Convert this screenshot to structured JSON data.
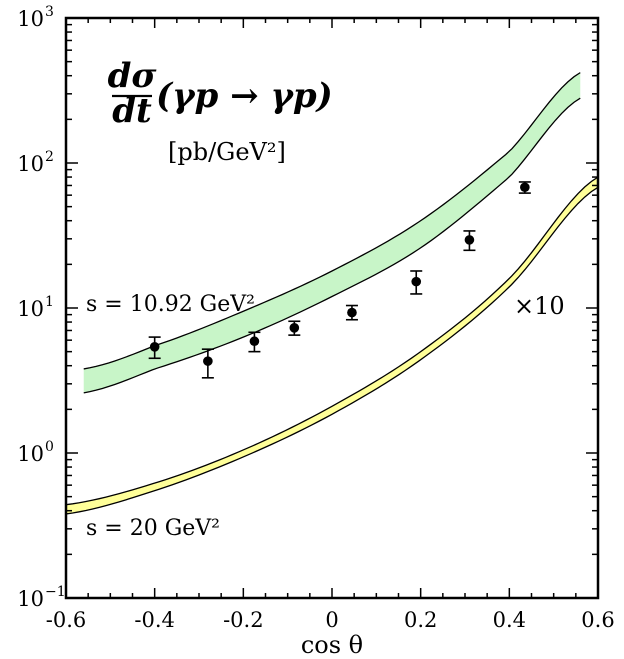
{
  "chart_data": {
    "type": "line",
    "title_formula": "dσ/dt(γp → γp)",
    "title_num": "dσ",
    "title_den": "dt",
    "title_rest": "(γp → γp)",
    "units": "[pb/GeV²]",
    "xlabel": "cos θ",
    "ylabel": "",
    "xlim": [
      -0.6,
      0.6
    ],
    "ylim": [
      0.1,
      1000
    ],
    "y_scale": "log",
    "x_ticks": [
      -0.6,
      -0.4,
      -0.2,
      0,
      0.2,
      0.4,
      0.6
    ],
    "x_tick_labels": [
      "-0.6",
      "-0.4",
      "-0.2",
      "0",
      "0.2",
      "0.4",
      "0.6"
    ],
    "y_ticks": [
      0.1,
      1,
      10,
      100,
      1000
    ],
    "y_tick_labels_base": [
      "10",
      "10",
      "10",
      "10",
      "10"
    ],
    "y_tick_labels_exp": [
      "−1",
      "0",
      "1",
      "2",
      "3"
    ],
    "grid": false,
    "bands": [
      {
        "label": "s = 10.92 GeV²",
        "fill_color": "#c8f5c8",
        "x": [
          -0.56,
          -0.4,
          -0.2,
          0.0,
          0.2,
          0.4,
          0.56
        ],
        "upper": [
          3.8,
          5.5,
          9.5,
          18,
          40,
          120,
          420
        ],
        "lower": [
          2.6,
          3.8,
          6.3,
          12,
          26,
          80,
          280
        ]
      },
      {
        "label": "s = 20 GeV²",
        "fill_color": "#ffff99",
        "x": [
          -0.6,
          -0.4,
          -0.2,
          0.0,
          0.2,
          0.4,
          0.6
        ],
        "upper": [
          0.44,
          0.62,
          1.05,
          2.1,
          5.0,
          16,
          80
        ],
        "lower": [
          0.38,
          0.55,
          0.94,
          1.85,
          4.4,
          14,
          68
        ]
      }
    ],
    "data_points": {
      "x": [
        -0.4,
        -0.28,
        -0.175,
        -0.085,
        0.045,
        0.19,
        0.31,
        0.435
      ],
      "y": [
        5.4,
        4.3,
        5.9,
        7.3,
        9.3,
        15.2,
        29.5,
        68
      ],
      "y_upper": [
        6.3,
        5.2,
        6.8,
        8.1,
        10.4,
        18.0,
        34.0,
        74
      ],
      "y_lower": [
        4.5,
        3.3,
        5.0,
        6.5,
        8.3,
        12.5,
        25.0,
        62
      ]
    },
    "annotations": [
      "s = 10.92 GeV²",
      "s = 20 GeV²",
      "×10"
    ]
  }
}
